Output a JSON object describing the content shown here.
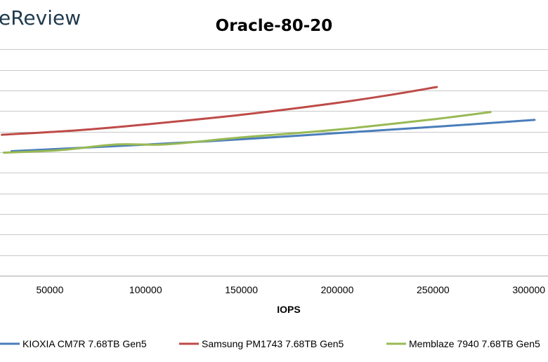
{
  "brand": {
    "partial_text": "eReview"
  },
  "chart_data": {
    "type": "line",
    "title": "Oracle-80-20",
    "xlabel": "IOPS",
    "ylabel": "",
    "xlim": [
      24000,
      310000
    ],
    "ylim": [
      0,
      12
    ],
    "x_ticks": [
      50000,
      100000,
      150000,
      200000,
      250000,
      300000
    ],
    "x_tick_labels": [
      "50000",
      "100000",
      "150000",
      "200000",
      "250000",
      "300000"
    ],
    "y_gridlines": [
      0,
      1,
      2,
      3,
      4,
      5,
      6,
      7,
      8,
      9,
      10,
      11
    ],
    "grid": "horizontal",
    "legend_position": "bottom",
    "series": [
      {
        "name": "KIOXIA CM7R 7.68TB Gen5",
        "color": "#4a7ebb",
        "points": [
          [
            30000,
            6.05
          ],
          [
            100000,
            6.37
          ],
          [
            150000,
            6.63
          ],
          [
            200000,
            6.93
          ],
          [
            250000,
            7.23
          ],
          [
            303000,
            7.57
          ]
        ]
      },
      {
        "name": "Samsung PM1743 7.68TB Gen5",
        "color": "#be4b48",
        "points": [
          [
            25000,
            6.85
          ],
          [
            65000,
            7.07
          ],
          [
            100000,
            7.35
          ],
          [
            150000,
            7.82
          ],
          [
            200000,
            8.4
          ],
          [
            230000,
            8.82
          ],
          [
            252000,
            9.17
          ]
        ]
      },
      {
        "name": "Memblaze 7940 7.68TB Gen5",
        "color": "#98b954",
        "points": [
          [
            26000,
            5.98
          ],
          [
            55000,
            6.1
          ],
          [
            85000,
            6.38
          ],
          [
            110000,
            6.38
          ],
          [
            150000,
            6.72
          ],
          [
            200000,
            7.1
          ],
          [
            250000,
            7.6
          ],
          [
            280000,
            7.95
          ]
        ]
      }
    ]
  }
}
